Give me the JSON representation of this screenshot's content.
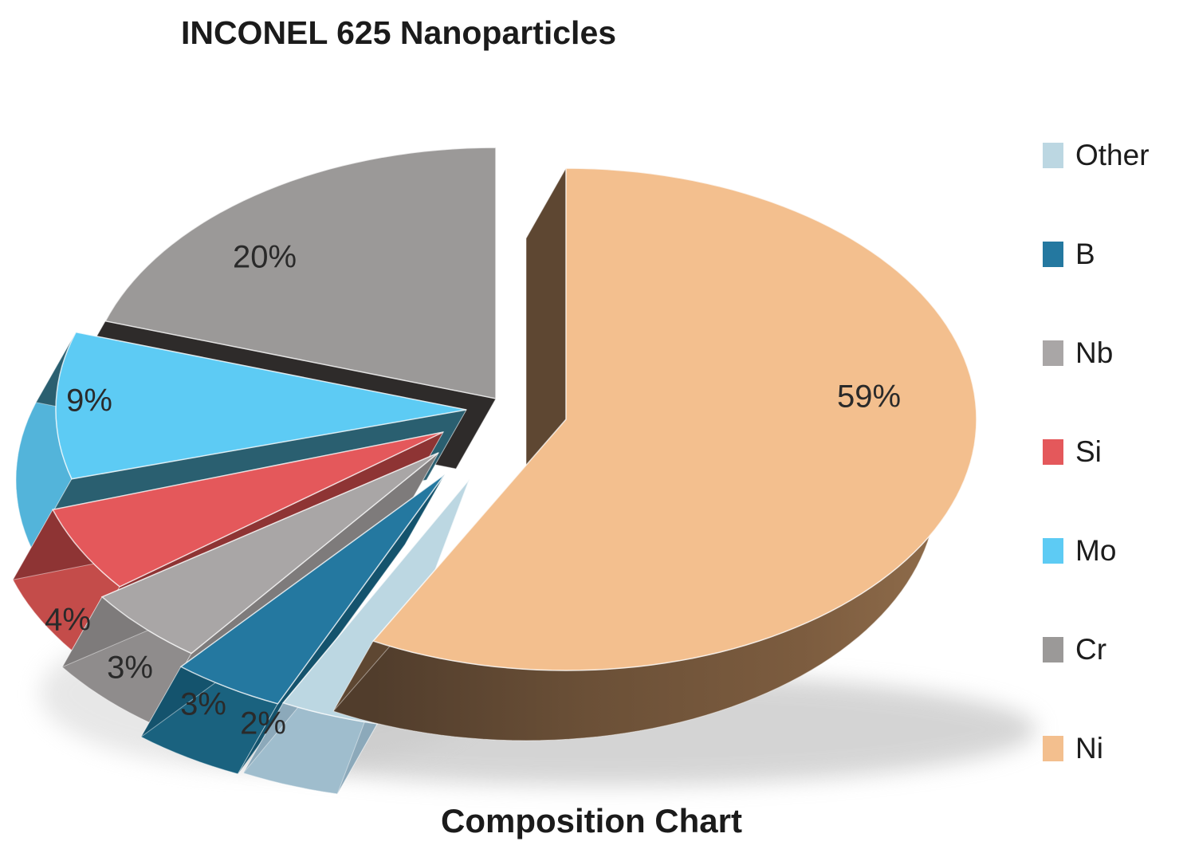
{
  "header": {
    "title": "INCONEL 625 Nanoparticles"
  },
  "footer": {
    "caption": "Composition Chart"
  },
  "legend": {
    "position": "right",
    "items": [
      {
        "label": "Other",
        "color": "#BCD7E2"
      },
      {
        "label": "B",
        "color": "#2478A0"
      },
      {
        "label": "Nb",
        "color": "#A9A6A6"
      },
      {
        "label": "Si",
        "color": "#E4585B"
      },
      {
        "label": "Mo",
        "color": "#5DCBF4"
      },
      {
        "label": "Cr",
        "color": "#9B9998"
      },
      {
        "label": "Ni",
        "color": "#F3BF8E"
      }
    ]
  },
  "chart_data": {
    "type": "pie",
    "style": "3d-exploded",
    "title": "INCONEL 625 Nanoparticles",
    "caption": "Composition Chart",
    "unit": "percent",
    "legend_position": "right",
    "legend_order": [
      "Other",
      "B",
      "Nb",
      "Si",
      "Mo",
      "Cr",
      "Ni"
    ],
    "order_clockwise_from_top": [
      "Ni",
      "Other",
      "B",
      "Nb",
      "Si",
      "Mo",
      "Cr"
    ],
    "slices": [
      {
        "label": "Ni",
        "value": 59,
        "display": "59%",
        "color": "#F3BF8E"
      },
      {
        "label": "Cr",
        "value": 20,
        "display": "20%",
        "color": "#9B9998"
      },
      {
        "label": "Mo",
        "value": 9,
        "display": "9%",
        "color": "#5DCBF4"
      },
      {
        "label": "Si",
        "value": 4,
        "display": "4%",
        "color": "#E4585B"
      },
      {
        "label": "Nb",
        "value": 3,
        "display": "3%",
        "color": "#A9A6A6"
      },
      {
        "label": "B",
        "value": 3,
        "display": "3%",
        "color": "#2478A0"
      },
      {
        "label": "Other",
        "value": 2,
        "display": "2%",
        "color": "#BCD7E2"
      }
    ]
  }
}
